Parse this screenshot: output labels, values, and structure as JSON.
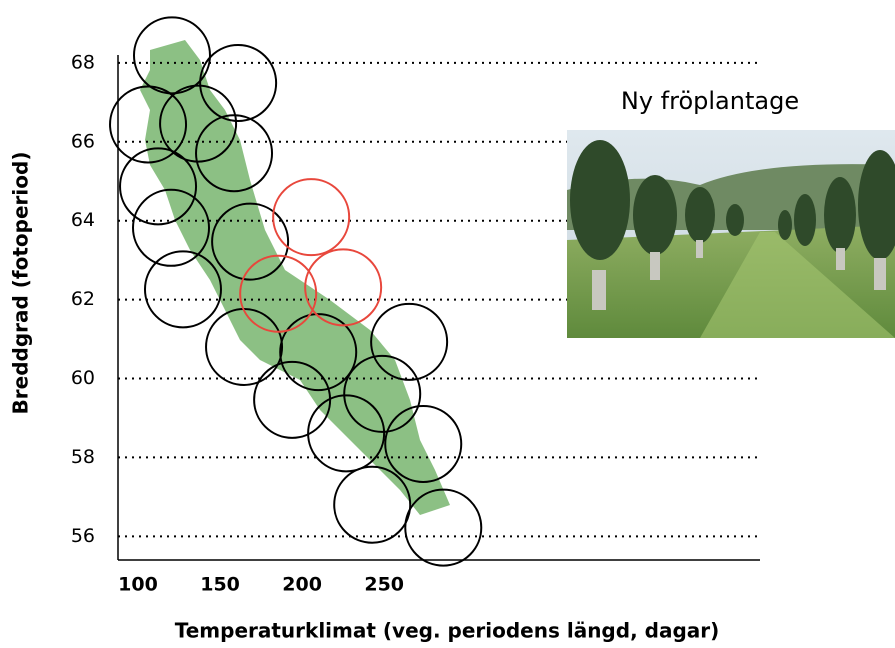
{
  "chart_data": {
    "type": "scatter",
    "x_label": "Temperaturklimat (veg. periodens längd, dagar)",
    "y_label": "Breddgrad (fotoperiod)",
    "annotation": "Ny fröplantage",
    "xlim": [
      87.8,
      479
    ],
    "ylim": [
      55.4,
      68.2
    ],
    "xticks": [
      100,
      150,
      200,
      250
    ],
    "yticks": [
      56,
      58,
      60,
      62,
      64,
      66,
      68
    ],
    "grid": true,
    "series": [
      {
        "color": "#000000",
        "x": [
          120.7,
          161,
          106.1,
          136.6,
          112.2,
          158.5,
          120.1,
          168.3,
          127.4,
          164.6,
          209.8,
          193.9,
          265.2,
          248.8,
          226.8,
          273.8,
          242.7,
          286
        ],
        "values": [
          68.19,
          67.49,
          66.44,
          66.46,
          64.87,
          65.71,
          63.82,
          63.47,
          62.26,
          60.8,
          60.67,
          59.46,
          60.93,
          59.61,
          58.61,
          58.34,
          56.8,
          56.22
        ]
      },
      {
        "color": "#e8473c",
        "x": [
          205.5,
          185.4,
          225
        ],
        "values": [
          64.09,
          62.15,
          62.31
        ]
      }
    ]
  }
}
